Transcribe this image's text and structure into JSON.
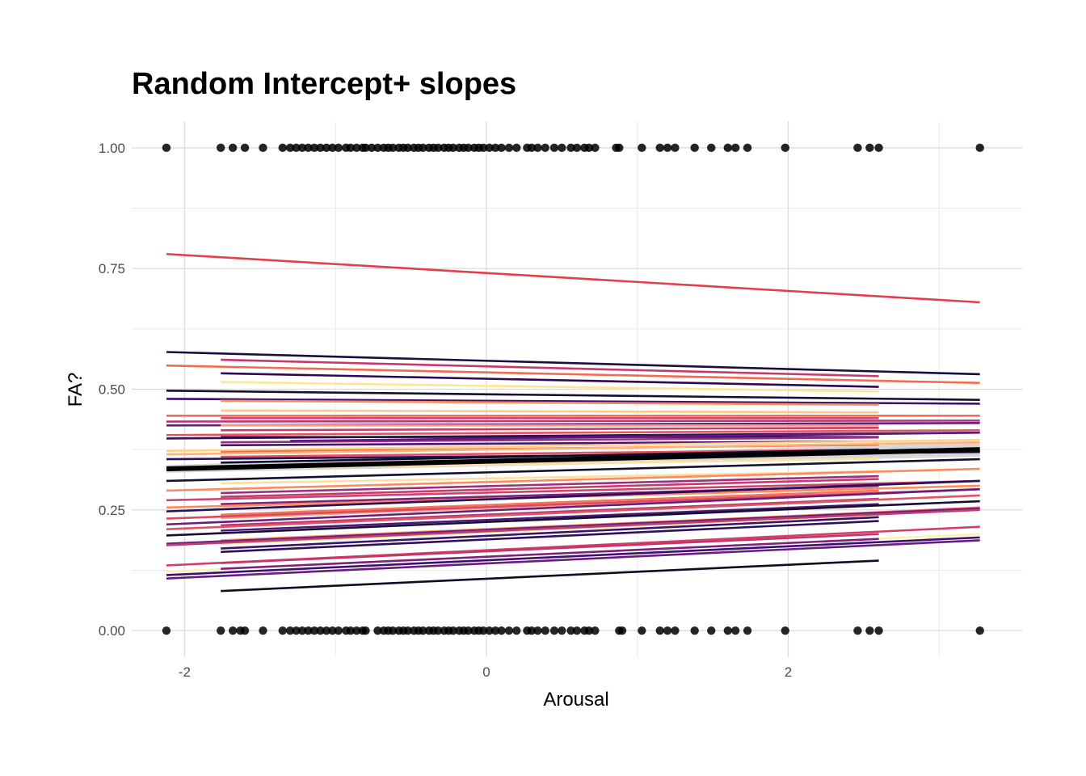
{
  "chart_data": {
    "type": "line",
    "title": "Random Intercept+ slopes",
    "xlabel": "Arousal",
    "ylabel": "FA?",
    "xlim": [
      -2.35,
      3.55
    ],
    "ylim": [
      -0.055,
      1.055
    ],
    "x_ticks": [
      -2,
      0,
      2
    ],
    "x_tick_labels": [
      "-2",
      "0",
      "2"
    ],
    "y_ticks": [
      0,
      0.25,
      0.5,
      0.75,
      1
    ],
    "y_tick_labels": [
      "0.00",
      "0.25",
      "0.50",
      "0.75",
      "1.00"
    ],
    "grid": true,
    "legend": "none",
    "points": {
      "color": "#000000",
      "x_values_at_1": [
        -2.12,
        -1.76,
        -1.68,
        -1.6,
        -1.48,
        -1.35,
        -1.3,
        -1.26,
        -1.22,
        -1.18,
        -1.14,
        -1.1,
        -1.06,
        -1.02,
        -0.98,
        -0.93,
        -0.9,
        -0.86,
        -0.82,
        -0.8,
        -0.76,
        -0.72,
        -0.68,
        -0.65,
        -0.62,
        -0.58,
        -0.55,
        -0.52,
        -0.48,
        -0.45,
        -0.42,
        -0.38,
        -0.35,
        -0.32,
        -0.28,
        -0.25,
        -0.22,
        -0.18,
        -0.15,
        -0.12,
        -0.08,
        -0.05,
        -0.02,
        0.02,
        0.06,
        0.1,
        0.15,
        0.2,
        0.27,
        0.3,
        0.34,
        0.39,
        0.45,
        0.5,
        0.56,
        0.6,
        0.65,
        0.68,
        0.72,
        0.86,
        0.88,
        1.03,
        1.15,
        1.2,
        1.25,
        1.38,
        1.49,
        1.6,
        1.65,
        1.73,
        1.98,
        2.46,
        2.54,
        2.6,
        3.27
      ],
      "x_values_at_0": [
        -2.12,
        -1.76,
        -1.68,
        -1.63,
        -1.6,
        -1.48,
        -1.35,
        -1.3,
        -1.26,
        -1.22,
        -1.18,
        -1.14,
        -1.1,
        -1.06,
        -1.02,
        -0.98,
        -0.93,
        -0.9,
        -0.86,
        -0.82,
        -0.8,
        -0.72,
        -0.68,
        -0.65,
        -0.62,
        -0.58,
        -0.55,
        -0.52,
        -0.48,
        -0.45,
        -0.42,
        -0.38,
        -0.35,
        -0.32,
        -0.28,
        -0.25,
        -0.22,
        -0.18,
        -0.15,
        -0.12,
        -0.08,
        -0.05,
        -0.02,
        0.02,
        0.06,
        0.1,
        0.15,
        0.2,
        0.27,
        0.3,
        0.34,
        0.39,
        0.45,
        0.5,
        0.56,
        0.6,
        0.65,
        0.68,
        0.72,
        0.88,
        0.9,
        1.03,
        1.15,
        1.2,
        1.25,
        1.38,
        1.49,
        1.6,
        1.65,
        1.73,
        1.98,
        2.46,
        2.54,
        2.6,
        3.27
      ]
    },
    "series": [
      {
        "color": "#e0404e",
        "x": [
          -2.12,
          3.27
        ],
        "y": [
          0.78,
          0.68
        ]
      },
      {
        "color": "#1a0f3c",
        "x": [
          -2.12,
          3.27
        ],
        "y": [
          0.577,
          0.531
        ]
      },
      {
        "color": "#c63a6a",
        "x": [
          -1.76,
          2.6
        ],
        "y": [
          0.561,
          0.527
        ]
      },
      {
        "color": "#f26a4f",
        "x": [
          -2.12,
          3.27
        ],
        "y": [
          0.549,
          0.513
        ]
      },
      {
        "color": "#2b0a52",
        "x": [
          -1.76,
          2.6
        ],
        "y": [
          0.533,
          0.505
        ]
      },
      {
        "color": "#fbe795",
        "x": [
          -1.76,
          2.6
        ],
        "y": [
          0.515,
          0.495
        ]
      },
      {
        "color": "#15102e",
        "x": [
          -2.12,
          3.27
        ],
        "y": [
          0.497,
          0.478
        ]
      },
      {
        "color": "#3d0f6e",
        "x": [
          -2.12,
          3.27
        ],
        "y": [
          0.48,
          0.47
        ]
      },
      {
        "color": "#fa8b5a",
        "x": [
          -1.76,
          2.6
        ],
        "y": [
          0.476,
          0.468
        ]
      },
      {
        "color": "#fcc98a",
        "x": [
          -1.76,
          2.6
        ],
        "y": [
          0.456,
          0.452
        ]
      },
      {
        "color": "#f06d58",
        "x": [
          -2.12,
          3.27
        ],
        "y": [
          0.445,
          0.445
        ]
      },
      {
        "color": "#d8456c",
        "x": [
          -1.76,
          2.6
        ],
        "y": [
          0.44,
          0.44
        ]
      },
      {
        "color": "#b63a79",
        "x": [
          -2.12,
          3.27
        ],
        "y": [
          0.433,
          0.435
        ]
      },
      {
        "color": "#6a1b7e",
        "x": [
          -2.12,
          3.27
        ],
        "y": [
          0.425,
          0.43
        ]
      },
      {
        "color": "#fe9c6a",
        "x": [
          -1.76,
          2.6
        ],
        "y": [
          0.425,
          0.425
        ]
      },
      {
        "color": "#c33d6b",
        "x": [
          -1.76,
          2.6
        ],
        "y": [
          0.415,
          0.42
        ]
      },
      {
        "color": "#e65660",
        "x": [
          -2.12,
          3.27
        ],
        "y": [
          0.405,
          0.415
        ]
      },
      {
        "color": "#35105f",
        "x": [
          -2.12,
          3.27
        ],
        "y": [
          0.398,
          0.41
        ]
      },
      {
        "color": "#2c0f4e",
        "x": [
          -1.76,
          2.6
        ],
        "y": [
          0.401,
          0.401
        ]
      },
      {
        "color": "#9a2d80",
        "x": [
          -1.76,
          2.6
        ],
        "y": [
          0.39,
          0.4
        ]
      },
      {
        "color": "#5b1b7e",
        "x": [
          -1.3,
          3.27
        ],
        "y": [
          0.393,
          0.41
        ]
      },
      {
        "color": "#4c1272",
        "x": [
          -1.76,
          2.6
        ],
        "y": [
          0.384,
          0.392
        ]
      },
      {
        "color": "#fcd38b",
        "x": [
          -2.12,
          3.27
        ],
        "y": [
          0.372,
          0.395
        ]
      },
      {
        "color": "#f2674f",
        "x": [
          -1.76,
          2.6
        ],
        "y": [
          0.37,
          0.385
        ]
      },
      {
        "color": "#fcb27b",
        "x": [
          -2.12,
          3.27
        ],
        "y": [
          0.365,
          0.39
        ]
      },
      {
        "color": "#e44e61",
        "x": [
          -1.76,
          2.6
        ],
        "y": [
          0.36,
          0.375
        ]
      },
      {
        "color": "#2a1158",
        "x": [
          -2.12,
          3.27
        ],
        "y": [
          0.355,
          0.37
        ]
      },
      {
        "color": "#0f0b29",
        "x": [
          -1.76,
          2.6
        ],
        "y": [
          0.348,
          0.375
        ]
      },
      {
        "color": "#fde3a0",
        "x": [
          -1.76,
          2.6
        ],
        "y": [
          0.336,
          0.356
        ]
      },
      {
        "color": "#12102c",
        "x": [
          -2.12,
          3.27
        ],
        "y": [
          0.31,
          0.355
        ]
      },
      {
        "color": "#fcdfa0",
        "x": [
          -1.76,
          2.6
        ],
        "y": [
          0.305,
          0.33
        ]
      },
      {
        "color": "#fe8b5e",
        "x": [
          -2.12,
          3.27
        ],
        "y": [
          0.29,
          0.335
        ]
      },
      {
        "color": "#9c2e7f",
        "x": [
          -1.76,
          2.6
        ],
        "y": [
          0.285,
          0.32
        ]
      },
      {
        "color": "#c33c6c",
        "x": [
          -1.76,
          2.6
        ],
        "y": [
          0.277,
          0.314
        ]
      },
      {
        "color": "#cf426e",
        "x": [
          -2.12,
          3.27
        ],
        "y": [
          0.27,
          0.31
        ]
      },
      {
        "color": "#7c217f",
        "x": [
          -1.76,
          2.6
        ],
        "y": [
          0.262,
          0.3
        ]
      },
      {
        "color": "#e14e5d",
        "x": [
          -1.76,
          2.6
        ],
        "y": [
          0.258,
          0.295
        ]
      },
      {
        "color": "#fa8d5d",
        "x": [
          -2.12,
          3.27
        ],
        "y": [
          0.255,
          0.3
        ]
      },
      {
        "color": "#2a0f5a",
        "x": [
          -2.12,
          3.27
        ],
        "y": [
          0.247,
          0.31
        ]
      },
      {
        "color": "#f7715b",
        "x": [
          -1.76,
          2.6
        ],
        "y": [
          0.24,
          0.29
        ]
      },
      {
        "color": "#fca27a",
        "x": [
          -1.76,
          2.6
        ],
        "y": [
          0.233,
          0.285
        ]
      },
      {
        "color": "#d84b63",
        "x": [
          -2.12,
          3.27
        ],
        "y": [
          0.232,
          0.293
        ]
      },
      {
        "color": "#661d80",
        "x": [
          -2.12,
          3.27
        ],
        "y": [
          0.22,
          0.293
        ]
      },
      {
        "color": "#b63778",
        "x": [
          -1.76,
          2.6
        ],
        "y": [
          0.218,
          0.273
        ]
      },
      {
        "color": "#e05561",
        "x": [
          -2.12,
          3.27
        ],
        "y": [
          0.21,
          0.28
        ]
      },
      {
        "color": "#4c177c",
        "x": [
          -1.76,
          2.6
        ],
        "y": [
          0.207,
          0.262
        ]
      },
      {
        "color": "#15102d",
        "x": [
          -2.12,
          3.27
        ],
        "y": [
          0.197,
          0.268
        ]
      },
      {
        "color": "#fd9766",
        "x": [
          -1.76,
          2.6
        ],
        "y": [
          0.187,
          0.245
        ]
      },
      {
        "color": "#fbdf92",
        "x": [
          -1.76,
          2.6
        ],
        "y": [
          0.18,
          0.24
        ]
      },
      {
        "color": "#f56a5c",
        "x": [
          -2.12,
          3.27
        ],
        "y": [
          0.177,
          0.255
        ]
      },
      {
        "color": "#6a1c82",
        "x": [
          -2.12,
          3.27
        ],
        "y": [
          0.18,
          0.253
        ]
      },
      {
        "color": "#c23d6e",
        "x": [
          -2.12,
          3.27
        ],
        "y": [
          0.177,
          0.25
        ]
      },
      {
        "color": "#3c1366",
        "x": [
          -1.76,
          2.6
        ],
        "y": [
          0.17,
          0.235
        ]
      },
      {
        "color": "#2a1158",
        "x": [
          -1.76,
          2.6
        ],
        "y": [
          0.163,
          0.227
        ]
      },
      {
        "color": "#d03f6c",
        "x": [
          -2.12,
          3.27
        ],
        "y": [
          0.135,
          0.215
        ]
      },
      {
        "color": "#c6356a",
        "x": [
          -1.76,
          2.6
        ],
        "y": [
          0.14,
          0.2
        ]
      },
      {
        "color": "#fef2b0",
        "x": [
          -2.12,
          3.27
        ],
        "y": [
          0.122,
          0.2
        ]
      },
      {
        "color": "#7d207e",
        "x": [
          -1.76,
          2.6
        ],
        "y": [
          0.128,
          0.19
        ]
      },
      {
        "color": "#3d0f6e",
        "x": [
          -2.12,
          3.27
        ],
        "y": [
          0.115,
          0.193
        ]
      },
      {
        "color": "#6a1b7e",
        "x": [
          -2.12,
          3.27
        ],
        "y": [
          0.108,
          0.187
        ]
      },
      {
        "color": "#0f0c24",
        "x": [
          -1.76,
          2.6
        ],
        "y": [
          0.082,
          0.145
        ]
      }
    ],
    "fixed_effect": {
      "color": "#000000",
      "band_color": "#d3d3d3",
      "x": [
        -2.12,
        3.27
      ],
      "y": [
        0.335,
        0.375
      ],
      "lower": [
        0.327,
        0.36
      ],
      "upper": [
        0.343,
        0.39
      ]
    }
  }
}
